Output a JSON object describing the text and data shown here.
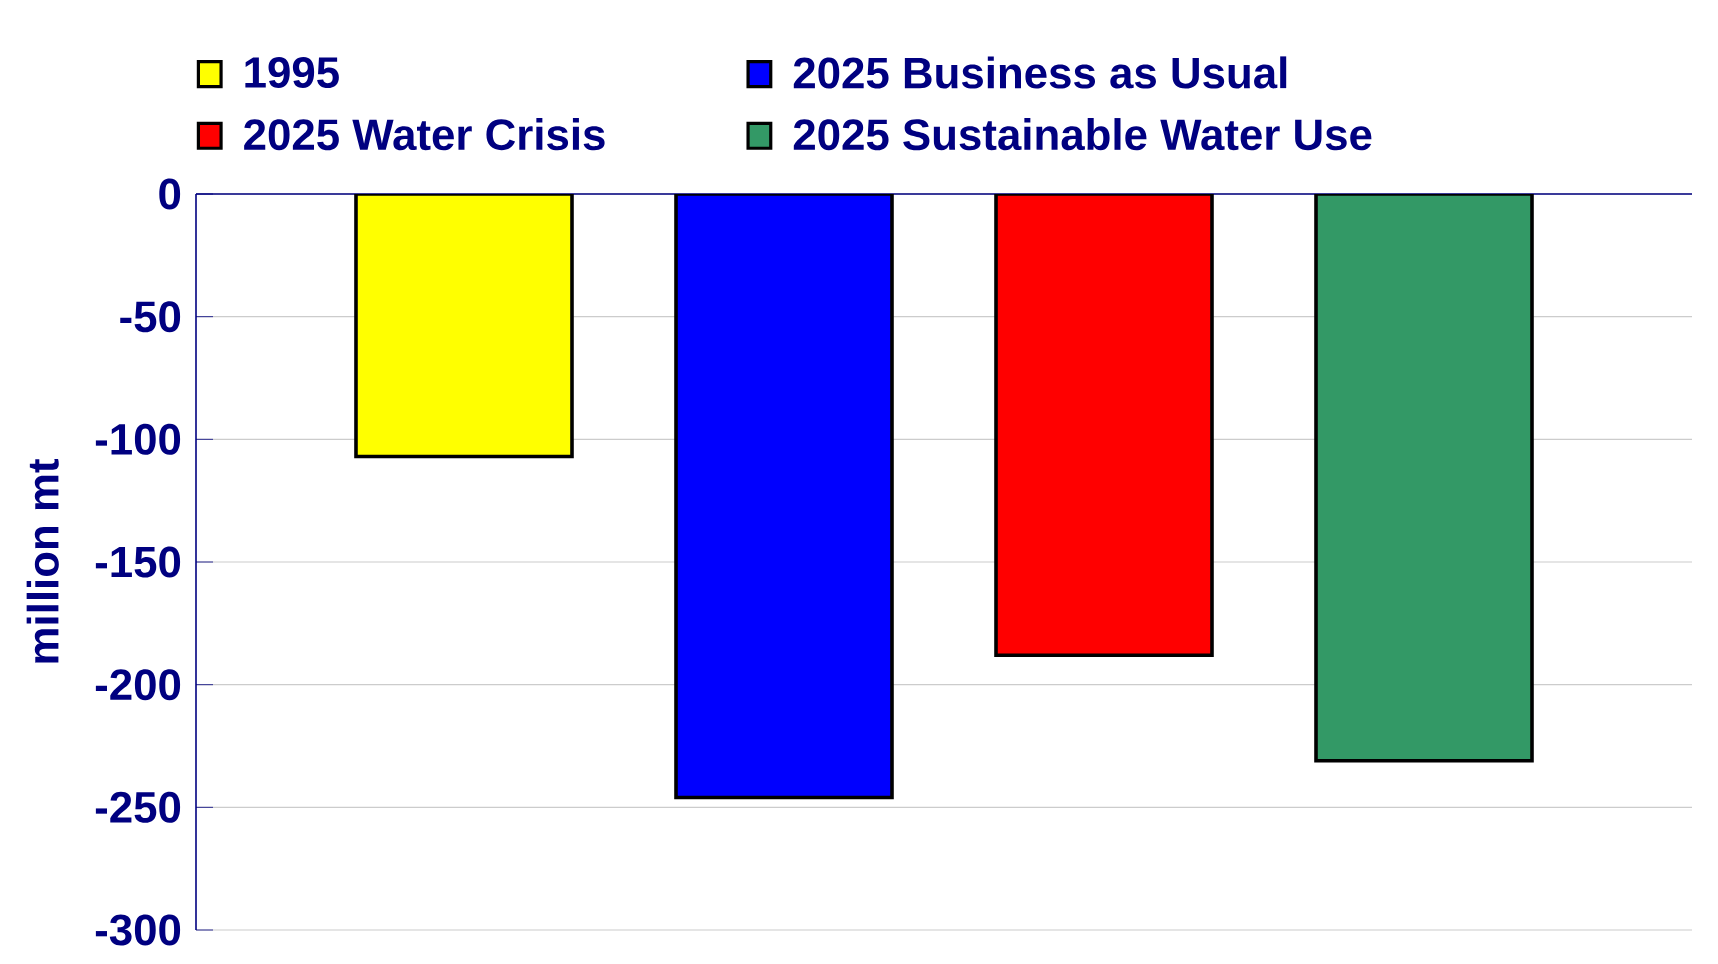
{
  "chart_data": {
    "type": "bar",
    "ylabel": "million mt",
    "categories": [
      null
    ],
    "series": [
      {
        "name": "1995",
        "color": "#ffff00",
        "values": [
          -107
        ]
      },
      {
        "name": "2025 Business as Usual",
        "color": "#0000ff",
        "values": [
          -246
        ]
      },
      {
        "name": "2025 Water Crisis",
        "color": "#ff0000",
        "values": [
          -188
        ]
      },
      {
        "name": "2025 Sustainable Water Use",
        "color": "#339966",
        "values": [
          -231
        ]
      }
    ],
    "ylim": [
      -300,
      0
    ],
    "yticks": [
      0,
      -50,
      -100,
      -150,
      -200,
      -250,
      -300
    ],
    "grid": "y",
    "legend": "top"
  }
}
